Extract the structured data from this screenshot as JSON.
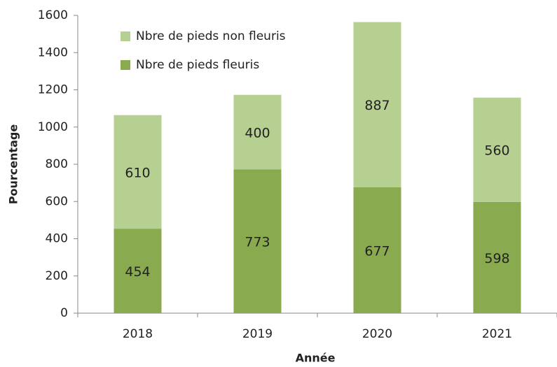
{
  "chart_data": {
    "type": "stacked_bar",
    "xlabel": "Année",
    "ylabel": "Pourcentage",
    "categories": [
      "2018",
      "2019",
      "2020",
      "2021"
    ],
    "series": [
      {
        "name": "Nbre de pieds fleuris",
        "color": "#8aaa50",
        "values": [
          454,
          773,
          677,
          598
        ]
      },
      {
        "name": "Nbre de pieds non fleuris",
        "color": "#b6d092",
        "values": [
          610,
          400,
          887,
          560
        ]
      }
    ],
    "ylim": [
      0,
      1600
    ],
    "yticks": [
      0,
      200,
      400,
      600,
      800,
      1000,
      1200,
      1400,
      1600
    ],
    "grid": false,
    "legend": "upper left"
  }
}
